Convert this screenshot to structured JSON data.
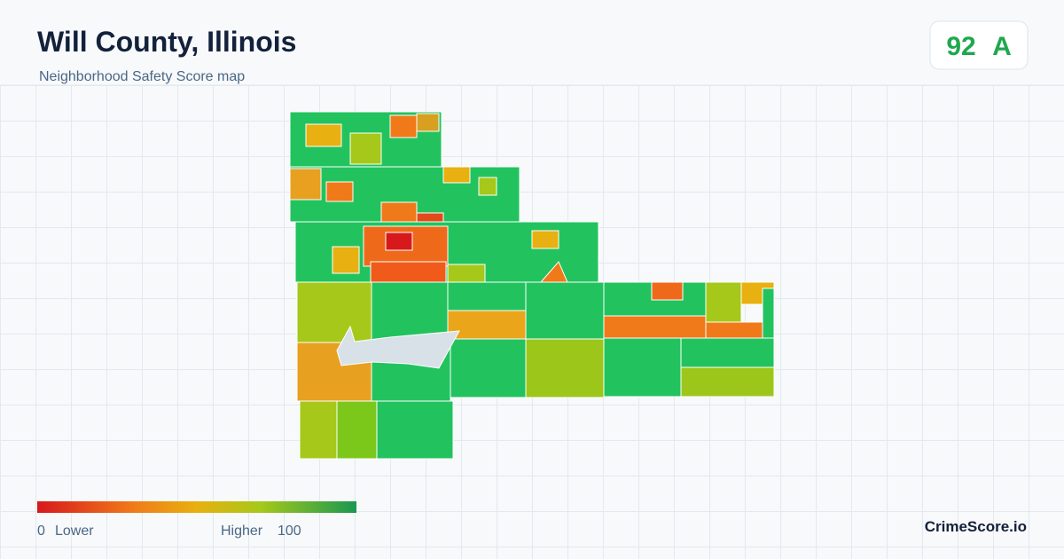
{
  "header": {
    "title": "Will County, Illinois",
    "subtitle": "Neighborhood Safety Score map"
  },
  "badge": {
    "score": "92",
    "grade": "A"
  },
  "legend": {
    "min": "0",
    "low_label": "Lower",
    "high_label": "Higher",
    "max": "100"
  },
  "brand": "CrimeScore.io"
}
